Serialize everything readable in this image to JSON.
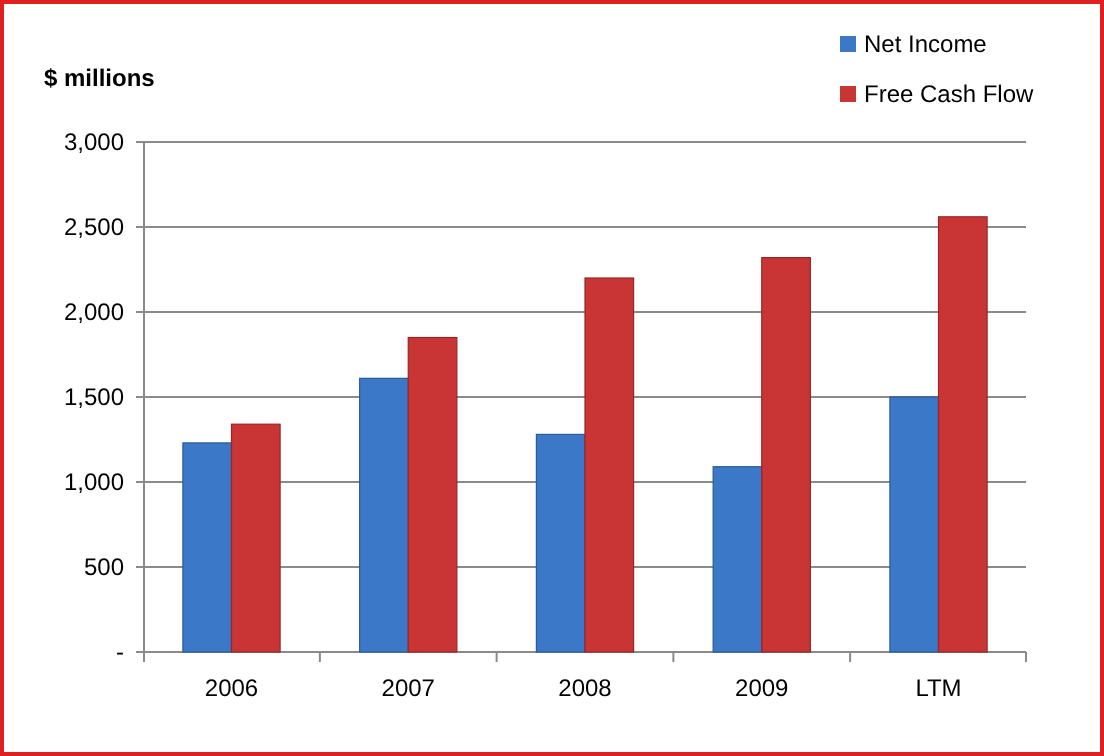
{
  "chart_data": {
    "type": "bar",
    "ylabel": "$ millions",
    "categories": [
      "2006",
      "2007",
      "2008",
      "2009",
      "LTM"
    ],
    "series": [
      {
        "name": "Net Income",
        "color": "#3b78c8",
        "values": [
          1230,
          1610,
          1280,
          1090,
          1500
        ]
      },
      {
        "name": "Free Cash Flow",
        "color": "#c93434",
        "values": [
          1340,
          1850,
          2200,
          2320,
          2560
        ]
      }
    ],
    "ylim": [
      0,
      3000
    ],
    "yticks": [
      {
        "value": 0,
        "label": "-"
      },
      {
        "value": 500,
        "label": "500"
      },
      {
        "value": 1000,
        "label": "1,000"
      },
      {
        "value": 1500,
        "label": "1,500"
      },
      {
        "value": 2000,
        "label": "2,000"
      },
      {
        "value": 2500,
        "label": "2,500"
      },
      {
        "value": 3000,
        "label": "3,000"
      }
    ],
    "grid": "y",
    "legend": "top right"
  }
}
